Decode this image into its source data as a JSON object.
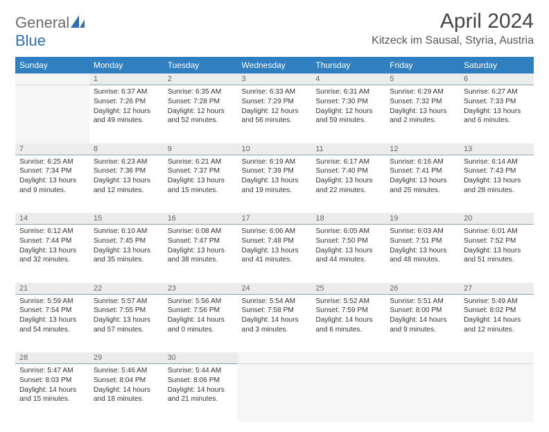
{
  "logo": {
    "general": "General",
    "blue": "Blue"
  },
  "header": {
    "title": "April 2024",
    "location": "Kitzeck im Sausal, Styria, Austria"
  },
  "style": {
    "header_bg": "#2f7fc1",
    "header_fg": "#ffffff",
    "daynum_bg": "#ececec",
    "daynum_border": "#8aa5bb",
    "page_bg": "#ffffff",
    "logo_gray": "#6a6a6a",
    "logo_blue": "#2f6fb3"
  },
  "weekdays": [
    "Sunday",
    "Monday",
    "Tuesday",
    "Wednesday",
    "Thursday",
    "Friday",
    "Saturday"
  ],
  "weeks": [
    [
      null,
      {
        "n": "1",
        "sr": "Sunrise: 6:37 AM",
        "ss": "Sunset: 7:26 PM",
        "d1": "Daylight: 12 hours",
        "d2": "and 49 minutes."
      },
      {
        "n": "2",
        "sr": "Sunrise: 6:35 AM",
        "ss": "Sunset: 7:28 PM",
        "d1": "Daylight: 12 hours",
        "d2": "and 52 minutes."
      },
      {
        "n": "3",
        "sr": "Sunrise: 6:33 AM",
        "ss": "Sunset: 7:29 PM",
        "d1": "Daylight: 12 hours",
        "d2": "and 56 minutes."
      },
      {
        "n": "4",
        "sr": "Sunrise: 6:31 AM",
        "ss": "Sunset: 7:30 PM",
        "d1": "Daylight: 12 hours",
        "d2": "and 59 minutes."
      },
      {
        "n": "5",
        "sr": "Sunrise: 6:29 AM",
        "ss": "Sunset: 7:32 PM",
        "d1": "Daylight: 13 hours",
        "d2": "and 2 minutes."
      },
      {
        "n": "6",
        "sr": "Sunrise: 6:27 AM",
        "ss": "Sunset: 7:33 PM",
        "d1": "Daylight: 13 hours",
        "d2": "and 6 minutes."
      }
    ],
    [
      {
        "n": "7",
        "sr": "Sunrise: 6:25 AM",
        "ss": "Sunset: 7:34 PM",
        "d1": "Daylight: 13 hours",
        "d2": "and 9 minutes."
      },
      {
        "n": "8",
        "sr": "Sunrise: 6:23 AM",
        "ss": "Sunset: 7:36 PM",
        "d1": "Daylight: 13 hours",
        "d2": "and 12 minutes."
      },
      {
        "n": "9",
        "sr": "Sunrise: 6:21 AM",
        "ss": "Sunset: 7:37 PM",
        "d1": "Daylight: 13 hours",
        "d2": "and 15 minutes."
      },
      {
        "n": "10",
        "sr": "Sunrise: 6:19 AM",
        "ss": "Sunset: 7:39 PM",
        "d1": "Daylight: 13 hours",
        "d2": "and 19 minutes."
      },
      {
        "n": "11",
        "sr": "Sunrise: 6:17 AM",
        "ss": "Sunset: 7:40 PM",
        "d1": "Daylight: 13 hours",
        "d2": "and 22 minutes."
      },
      {
        "n": "12",
        "sr": "Sunrise: 6:16 AM",
        "ss": "Sunset: 7:41 PM",
        "d1": "Daylight: 13 hours",
        "d2": "and 25 minutes."
      },
      {
        "n": "13",
        "sr": "Sunrise: 6:14 AM",
        "ss": "Sunset: 7:43 PM",
        "d1": "Daylight: 13 hours",
        "d2": "and 28 minutes."
      }
    ],
    [
      {
        "n": "14",
        "sr": "Sunrise: 6:12 AM",
        "ss": "Sunset: 7:44 PM",
        "d1": "Daylight: 13 hours",
        "d2": "and 32 minutes."
      },
      {
        "n": "15",
        "sr": "Sunrise: 6:10 AM",
        "ss": "Sunset: 7:45 PM",
        "d1": "Daylight: 13 hours",
        "d2": "and 35 minutes."
      },
      {
        "n": "16",
        "sr": "Sunrise: 6:08 AM",
        "ss": "Sunset: 7:47 PM",
        "d1": "Daylight: 13 hours",
        "d2": "and 38 minutes."
      },
      {
        "n": "17",
        "sr": "Sunrise: 6:06 AM",
        "ss": "Sunset: 7:48 PM",
        "d1": "Daylight: 13 hours",
        "d2": "and 41 minutes."
      },
      {
        "n": "18",
        "sr": "Sunrise: 6:05 AM",
        "ss": "Sunset: 7:50 PM",
        "d1": "Daylight: 13 hours",
        "d2": "and 44 minutes."
      },
      {
        "n": "19",
        "sr": "Sunrise: 6:03 AM",
        "ss": "Sunset: 7:51 PM",
        "d1": "Daylight: 13 hours",
        "d2": "and 48 minutes."
      },
      {
        "n": "20",
        "sr": "Sunrise: 6:01 AM",
        "ss": "Sunset: 7:52 PM",
        "d1": "Daylight: 13 hours",
        "d2": "and 51 minutes."
      }
    ],
    [
      {
        "n": "21",
        "sr": "Sunrise: 5:59 AM",
        "ss": "Sunset: 7:54 PM",
        "d1": "Daylight: 13 hours",
        "d2": "and 54 minutes."
      },
      {
        "n": "22",
        "sr": "Sunrise: 5:57 AM",
        "ss": "Sunset: 7:55 PM",
        "d1": "Daylight: 13 hours",
        "d2": "and 57 minutes."
      },
      {
        "n": "23",
        "sr": "Sunrise: 5:56 AM",
        "ss": "Sunset: 7:56 PM",
        "d1": "Daylight: 14 hours",
        "d2": "and 0 minutes."
      },
      {
        "n": "24",
        "sr": "Sunrise: 5:54 AM",
        "ss": "Sunset: 7:58 PM",
        "d1": "Daylight: 14 hours",
        "d2": "and 3 minutes."
      },
      {
        "n": "25",
        "sr": "Sunrise: 5:52 AM",
        "ss": "Sunset: 7:59 PM",
        "d1": "Daylight: 14 hours",
        "d2": "and 6 minutes."
      },
      {
        "n": "26",
        "sr": "Sunrise: 5:51 AM",
        "ss": "Sunset: 8:00 PM",
        "d1": "Daylight: 14 hours",
        "d2": "and 9 minutes."
      },
      {
        "n": "27",
        "sr": "Sunrise: 5:49 AM",
        "ss": "Sunset: 8:02 PM",
        "d1": "Daylight: 14 hours",
        "d2": "and 12 minutes."
      }
    ],
    [
      {
        "n": "28",
        "sr": "Sunrise: 5:47 AM",
        "ss": "Sunset: 8:03 PM",
        "d1": "Daylight: 14 hours",
        "d2": "and 15 minutes."
      },
      {
        "n": "29",
        "sr": "Sunrise: 5:46 AM",
        "ss": "Sunset: 8:04 PM",
        "d1": "Daylight: 14 hours",
        "d2": "and 18 minutes."
      },
      {
        "n": "30",
        "sr": "Sunrise: 5:44 AM",
        "ss": "Sunset: 8:06 PM",
        "d1": "Daylight: 14 hours",
        "d2": "and 21 minutes."
      },
      null,
      null,
      null,
      null
    ]
  ]
}
